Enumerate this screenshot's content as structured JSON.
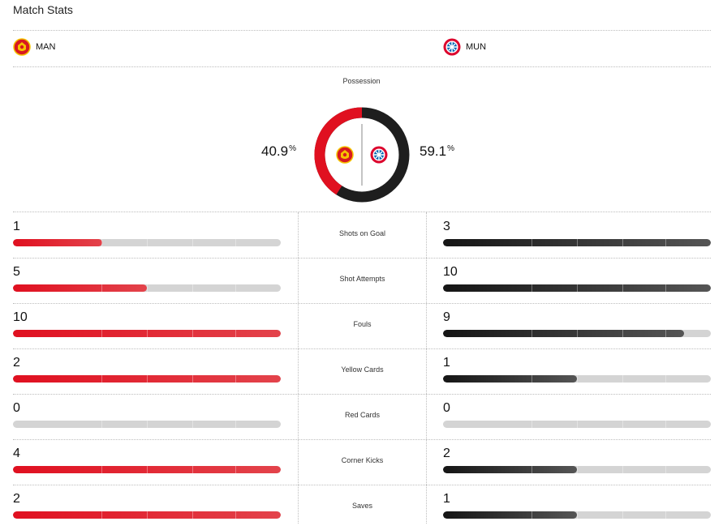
{
  "header": {
    "title": "Match Stats"
  },
  "teams": {
    "home": {
      "abbr": "MAN",
      "crest_icon": "manchester-united-crest-icon",
      "color": "#e01020"
    },
    "away": {
      "abbr": "MUN",
      "crest_icon": "bayern-munich-crest-icon",
      "color": "#222222"
    }
  },
  "possession": {
    "label": "Possession",
    "home_value": "40.9",
    "away_value": "59.1",
    "unit": "%",
    "home_fraction": 0.409,
    "away_fraction": 0.591
  },
  "stats": [
    {
      "label": "Shots on Goal",
      "home": "1",
      "away": "3",
      "home_fill": 0.333,
      "away_fill": 1.0
    },
    {
      "label": "Shot Attempts",
      "home": "5",
      "away": "10",
      "home_fill": 0.5,
      "away_fill": 1.0
    },
    {
      "label": "Fouls",
      "home": "10",
      "away": "9",
      "home_fill": 1.0,
      "away_fill": 0.9
    },
    {
      "label": "Yellow Cards",
      "home": "2",
      "away": "1",
      "home_fill": 1.0,
      "away_fill": 0.5
    },
    {
      "label": "Red Cards",
      "home": "0",
      "away": "0",
      "home_fill": 0.0,
      "away_fill": 0.0
    },
    {
      "label": "Corner Kicks",
      "home": "4",
      "away": "2",
      "home_fill": 1.0,
      "away_fill": 0.5
    },
    {
      "label": "Saves",
      "home": "2",
      "away": "1",
      "home_fill": 1.0,
      "away_fill": 0.5
    }
  ]
}
